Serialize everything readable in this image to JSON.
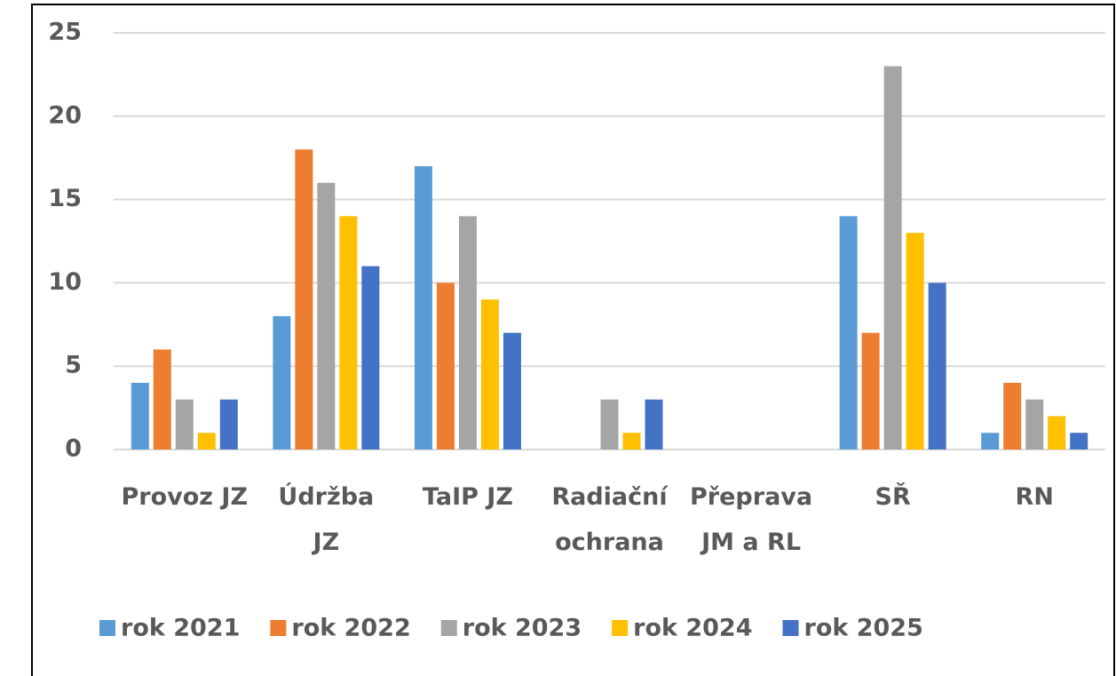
{
  "chart_data": {
    "type": "bar",
    "categories": [
      "Provoz JZ",
      "Údržba\nJZ",
      "TaIP JZ",
      "Radiační\nochrana",
      "Přeprava\nJM a RL",
      "SŘ",
      "RN"
    ],
    "series": [
      {
        "name": "rok 2021",
        "color": "#5b9bd5",
        "values": [
          4,
          8,
          17,
          0,
          0,
          14,
          1
        ]
      },
      {
        "name": "rok 2022",
        "color": "#ed7d31",
        "values": [
          6,
          18,
          10,
          0,
          0,
          7,
          4
        ]
      },
      {
        "name": "rok 2023",
        "color": "#a5a5a5",
        "values": [
          3,
          16,
          14,
          3,
          0,
          23,
          3
        ]
      },
      {
        "name": "rok 2024",
        "color": "#ffc000",
        "values": [
          1,
          14,
          9,
          1,
          0,
          13,
          2
        ]
      },
      {
        "name": "rok 2025",
        "color": "#4472c4",
        "values": [
          3,
          11,
          7,
          3,
          0,
          10,
          1
        ]
      }
    ],
    "ylim": [
      0,
      25
    ],
    "yticks": [
      0,
      5,
      10,
      15,
      20,
      25
    ],
    "grid": true,
    "legend": "bottom"
  }
}
